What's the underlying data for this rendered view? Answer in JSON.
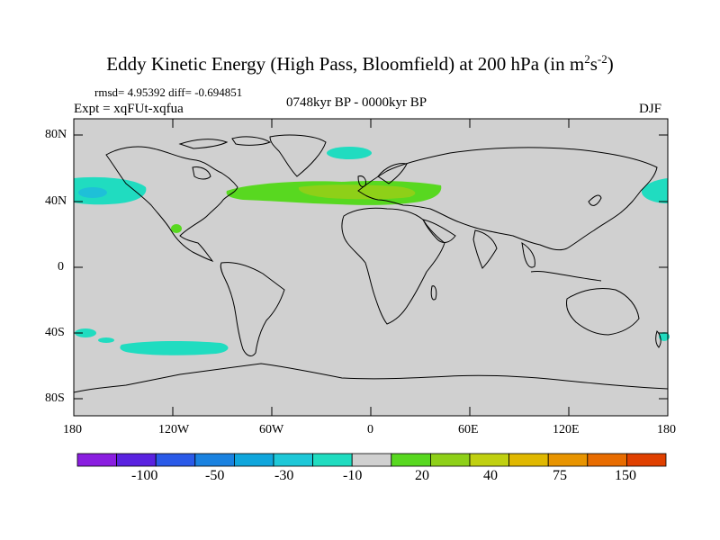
{
  "title_main": "Eddy Kinetic Energy (High Pass, Bloomfield) at 200 hPa (in m",
  "title_sup1": "2",
  "title_mid": "s",
  "title_sup2": "-2",
  "title_end": ")",
  "stats": "rmsd= 4.95392 diff= -0.694851",
  "expt": "Expt = xqFUt-xqfua",
  "period": "0748kyr BP - 0000kyr BP",
  "season": "DJF",
  "lat_labels": [
    "80N",
    "40N",
    "0",
    "40S",
    "80S"
  ],
  "lon_labels": [
    "180",
    "120W",
    "60W",
    "0",
    "60E",
    "120E",
    "180"
  ],
  "colorbar": {
    "colors": [
      "#8a1ee0",
      "#5a22e0",
      "#2a5ae8",
      "#1a82e0",
      "#10a6dc",
      "#1ec8d8",
      "#20dcc0",
      "#d0d0d0",
      "#58d820",
      "#8ed018",
      "#c0d010",
      "#e0b800",
      "#e89400",
      "#e86c00",
      "#e04000"
    ],
    "labels": [
      "-100",
      "-50",
      "-30",
      "-10",
      "20",
      "40",
      "75",
      "150"
    ]
  },
  "palette": {
    "land_background": "#d0d0d0",
    "negative_anomaly": "#20dcc0",
    "positive_light": "#8ed018",
    "positive_strong": "#58d820",
    "coastline": "#000000"
  }
}
